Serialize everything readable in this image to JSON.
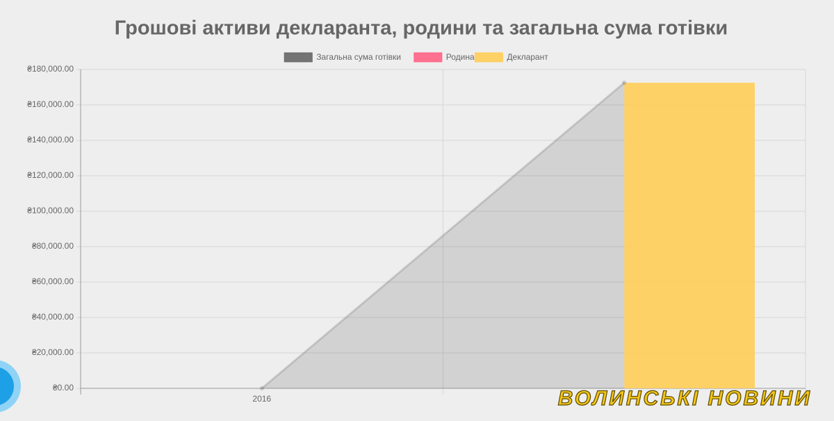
{
  "chart_data": {
    "type": "bar",
    "title": "Грошові активи декларанта, родини та загальна сума готівки",
    "categories": [
      "2016",
      null
    ],
    "series": [
      {
        "name": "Загальна сума готівки",
        "type": "line",
        "color": "#666666",
        "values": [
          0,
          172500
        ]
      },
      {
        "name": "Родина",
        "color": "#ff6384",
        "values": [
          0,
          0
        ]
      },
      {
        "name": "Декларант",
        "color": "#ffcd56",
        "values": [
          0,
          172500
        ]
      }
    ],
    "ylim": [
      0,
      180000
    ],
    "yticks": [
      {
        "value": 0,
        "label": "₴0.00"
      },
      {
        "value": 20000,
        "label": "₴20,000.00"
      },
      {
        "value": 40000,
        "label": "₴40,000.00"
      },
      {
        "value": 60000,
        "label": "₴60,000.00"
      },
      {
        "value": 80000,
        "label": "₴80,000.00"
      },
      {
        "value": 100000,
        "label": "₴100,000.00"
      },
      {
        "value": 120000,
        "label": "₴120,000.00"
      },
      {
        "value": 140000,
        "label": "₴140,000.00"
      },
      {
        "value": 160000,
        "label": "₴160,000.00"
      },
      {
        "value": 180000,
        "label": "₴180,000.00"
      }
    ],
    "grid": true,
    "legend": "top",
    "watermark": "ВОЛИНСЬКІ НОВИНИ"
  }
}
